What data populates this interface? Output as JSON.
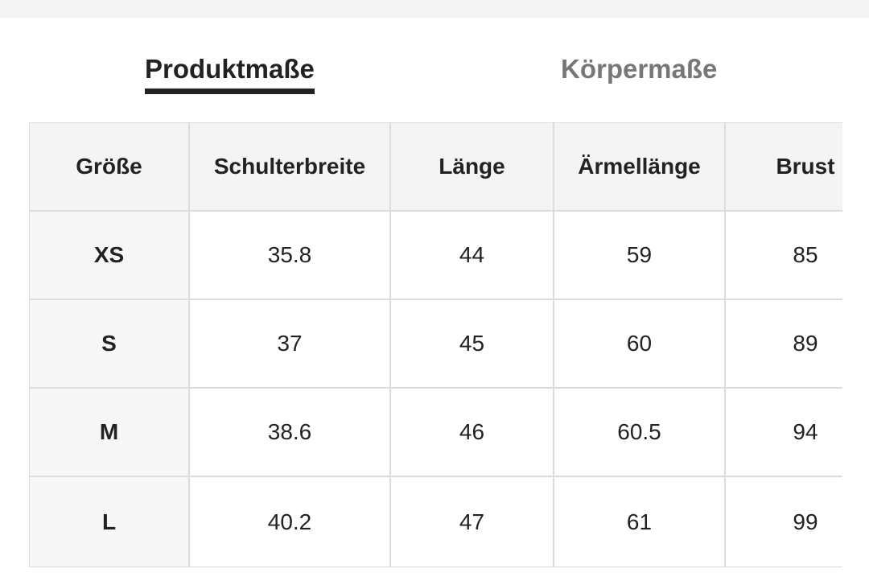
{
  "tabs": [
    "Produktmaße",
    "Körpermaße"
  ],
  "table": {
    "header": [
      "Größe",
      "Schulterbreite",
      "Länge",
      "Ärmellänge",
      "Brust"
    ],
    "rows": [
      [
        "XS",
        35.8,
        44,
        59,
        85
      ],
      [
        "S",
        37,
        45,
        60,
        89
      ],
      [
        "M",
        38.6,
        46,
        60.5,
        94
      ],
      [
        "L",
        40.2,
        47,
        61,
        99
      ]
    ]
  }
}
